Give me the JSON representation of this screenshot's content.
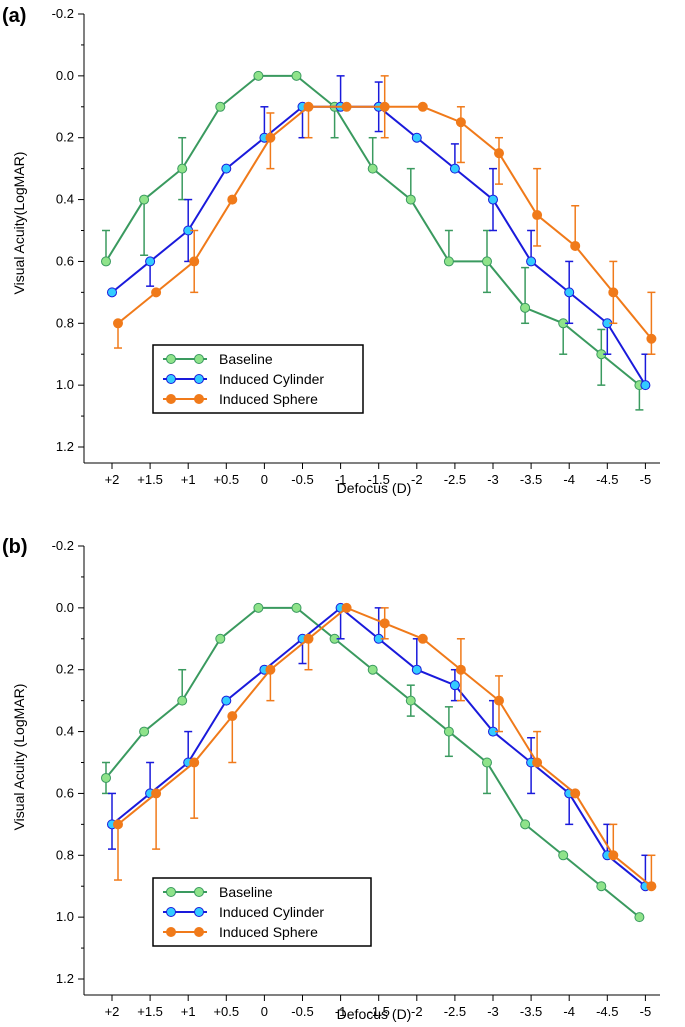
{
  "chart_data": [
    {
      "panel": "(a)",
      "type": "line",
      "xlabel": "Defocus (D)",
      "ylabel": "Visual Acuity(LogMAR)",
      "categories": [
        "+2",
        "+1.5",
        "+1",
        "+0.5",
        "0",
        "-0.5",
        "-1",
        "-1.5",
        "-2",
        "-2.5",
        "-3",
        "-3.5",
        "-4",
        "-4.5",
        "-5"
      ],
      "yticks": [
        "-0.2",
        "0.0",
        "0.2",
        "0.4",
        "0.6",
        "0.8",
        "1.0",
        "1.2"
      ],
      "ylim": [
        1.2,
        -0.2
      ],
      "y_inverted": true,
      "legend_position": "bottom-left",
      "series": [
        {
          "name": "Baseline",
          "color": "#3a9a5f",
          "marker_color": "#8fe38a",
          "values": [
            0.6,
            0.4,
            0.3,
            0.1,
            0.0,
            0.0,
            0.1,
            0.3,
            0.4,
            0.6,
            0.6,
            0.75,
            0.8,
            0.9,
            1.0
          ],
          "err_up": [
            0.1,
            0.0,
            0.1,
            0.0,
            0.0,
            0.0,
            0.0,
            0.1,
            0.1,
            0.1,
            0.1,
            0.13,
            0.0,
            0.08,
            0.0
          ],
          "err_down": [
            0.0,
            0.18,
            0.1,
            0.0,
            0.0,
            0.0,
            0.1,
            0.0,
            0.0,
            0.0,
            0.1,
            0.05,
            0.1,
            0.1,
            0.08
          ]
        },
        {
          "name": "Induced Cylinder",
          "color": "#1a1adb",
          "marker_color": "#33ccff",
          "values": [
            0.7,
            0.6,
            0.5,
            0.3,
            0.2,
            0.1,
            0.1,
            0.1,
            0.2,
            0.3,
            0.4,
            0.6,
            0.7,
            0.8,
            1.0
          ],
          "err_up": [
            0.0,
            0.0,
            0.1,
            0.0,
            0.1,
            0.0,
            0.1,
            0.08,
            0.0,
            0.08,
            0.1,
            0.1,
            0.1,
            0.0,
            0.1
          ],
          "err_down": [
            0.0,
            0.08,
            0.1,
            0.0,
            0.0,
            0.1,
            0.0,
            0.08,
            0.0,
            0.0,
            0.1,
            0.0,
            0.1,
            0.1,
            0.0
          ]
        },
        {
          "name": "Induced Sphere",
          "color": "#f07a1a",
          "marker_color": "#f07a1a",
          "values": [
            0.8,
            0.7,
            0.6,
            0.4,
            0.2,
            0.1,
            0.1,
            0.1,
            0.1,
            0.15,
            0.25,
            0.45,
            0.55,
            0.7,
            0.85
          ],
          "err_up": [
            0.0,
            0.0,
            0.1,
            0.0,
            0.08,
            0.0,
            0.0,
            0.1,
            0.0,
            0.05,
            0.05,
            0.15,
            0.13,
            0.1,
            0.15
          ],
          "err_down": [
            0.08,
            0.0,
            0.1,
            0.0,
            0.1,
            0.1,
            0.0,
            0.1,
            0.0,
            0.13,
            0.1,
            0.1,
            0.0,
            0.1,
            0.05
          ]
        }
      ]
    },
    {
      "panel": "(b)",
      "type": "line",
      "xlabel": "Defocus (D)",
      "ylabel": "Visual Acuity (LogMAR)",
      "categories": [
        "+2",
        "+1.5",
        "+1",
        "+0.5",
        "0",
        "-0.5",
        "-1",
        "-1.5",
        "-2",
        "-2.5",
        "-3",
        "-3.5",
        "-4",
        "-4.5",
        "-5"
      ],
      "yticks": [
        "-0.2",
        "0.0",
        "0.2",
        "0.4",
        "0.6",
        "0.8",
        "1.0",
        "1.2"
      ],
      "ylim": [
        1.2,
        -0.2
      ],
      "y_inverted": true,
      "legend_position": "bottom-left",
      "series": [
        {
          "name": "Baseline",
          "color": "#3a9a5f",
          "marker_color": "#8fe38a",
          "values": [
            0.55,
            0.4,
            0.3,
            0.1,
            0.0,
            0.0,
            0.1,
            0.2,
            0.3,
            0.4,
            0.5,
            0.7,
            0.8,
            0.9,
            1.0
          ],
          "err_up": [
            0.05,
            0.0,
            0.1,
            0.0,
            0.0,
            0.0,
            0.0,
            0.0,
            0.05,
            0.08,
            0.0,
            0.0,
            0.0,
            0.0,
            0.0
          ],
          "err_down": [
            0.05,
            0.0,
            0.0,
            0.0,
            0.0,
            0.0,
            0.0,
            0.0,
            0.05,
            0.08,
            0.1,
            0.0,
            0.0,
            0.0,
            0.0
          ]
        },
        {
          "name": "Induced Cylinder",
          "color": "#1a1adb",
          "marker_color": "#33ccff",
          "values": [
            0.7,
            0.6,
            0.5,
            0.3,
            0.2,
            0.1,
            0.0,
            0.1,
            0.2,
            0.25,
            0.4,
            0.5,
            0.6,
            0.8,
            0.9
          ],
          "err_up": [
            0.1,
            0.1,
            0.1,
            0.0,
            0.0,
            0.0,
            0.0,
            0.1,
            0.1,
            0.05,
            0.1,
            0.08,
            0.0,
            0.1,
            0.1
          ],
          "err_down": [
            0.08,
            0.0,
            0.0,
            0.0,
            0.0,
            0.08,
            0.1,
            0.0,
            0.0,
            0.05,
            0.0,
            0.1,
            0.1,
            0.0,
            0.0
          ]
        },
        {
          "name": "Induced Sphere",
          "color": "#f07a1a",
          "marker_color": "#f07a1a",
          "values": [
            0.7,
            0.6,
            0.5,
            0.35,
            0.2,
            0.1,
            0.0,
            0.05,
            0.1,
            0.2,
            0.3,
            0.5,
            0.6,
            0.8,
            0.9
          ],
          "err_up": [
            0.0,
            0.0,
            0.0,
            0.0,
            0.0,
            0.0,
            0.0,
            0.05,
            0.0,
            0.1,
            0.08,
            0.1,
            0.0,
            0.1,
            0.1
          ],
          "err_down": [
            0.18,
            0.18,
            0.18,
            0.15,
            0.1,
            0.1,
            0.0,
            0.05,
            0.0,
            0.1,
            0.1,
            0.0,
            0.0,
            0.0,
            0.0
          ]
        }
      ]
    }
  ]
}
